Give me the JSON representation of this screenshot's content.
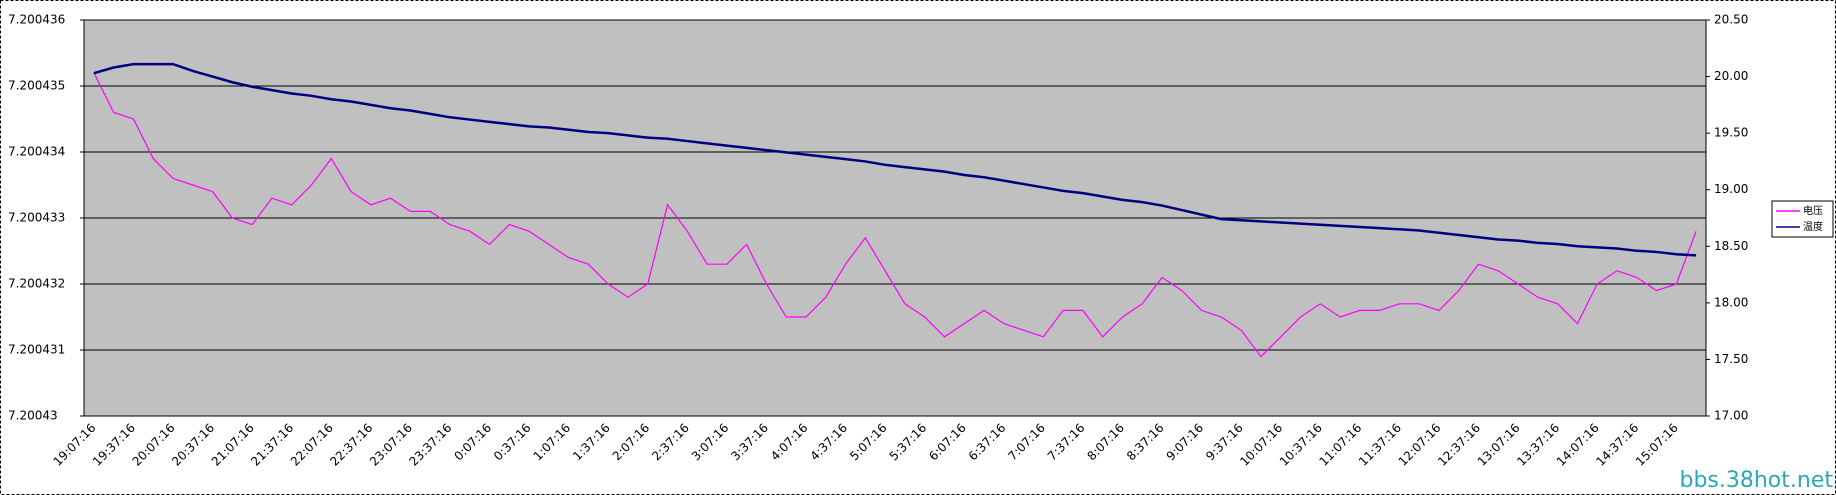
{
  "chart_data": {
    "type": "line",
    "categories": [
      "19:07:16",
      null,
      "19:37:16",
      null,
      "20:07:16",
      null,
      "20:37:16",
      null,
      "21:07:16",
      null,
      "21:37:16",
      null,
      "22:07:16",
      null,
      "22:37:16",
      null,
      "23:07:16",
      null,
      "23:37:16",
      null,
      "0:07:16",
      null,
      "0:37:16",
      null,
      "1:07:16",
      null,
      "1:37:16",
      null,
      "2:07:16",
      null,
      "2:37:16",
      null,
      "3:07:16",
      null,
      "3:37:16",
      null,
      "4:07:16",
      null,
      "4:37:16",
      null,
      "5:07:16",
      null,
      "5:37:16",
      null,
      "6:07:16",
      null,
      "6:37:16",
      null,
      "7:07:16",
      null,
      "7:37:16",
      null,
      "8:07:16",
      null,
      "8:37:16",
      null,
      "9:07:16",
      null,
      "9:37:16",
      null,
      "10:07:16",
      null,
      "10:37:16",
      null,
      "11:07:16",
      null,
      "11:37:16",
      null,
      "12:07:16",
      null,
      "12:37:16",
      null,
      "13:07:16",
      null,
      "13:37:16",
      null,
      "14:07:16",
      null,
      "14:37:16",
      null,
      "15:07:16",
      null
    ],
    "series": [
      {
        "name": "电压",
        "color": "#ff00ff",
        "values": [
          7.2004352,
          7.2004346,
          7.2004345,
          7.2004339,
          7.2004336,
          7.2004335,
          7.2004334,
          7.200433,
          7.2004329,
          7.2004333,
          7.2004332,
          7.2004335,
          7.2004339,
          7.2004334,
          7.2004332,
          7.2004333,
          7.2004331,
          7.2004331,
          7.2004329,
          7.2004328,
          7.2004326,
          7.2004329,
          7.2004328,
          7.2004326,
          7.2004324,
          7.2004323,
          7.200432,
          7.2004318,
          7.200432,
          7.2004332,
          7.2004328,
          7.2004323,
          7.2004323,
          7.2004326,
          7.200432,
          7.2004315,
          7.2004315,
          7.2004318,
          7.2004323,
          7.2004327,
          7.2004322,
          7.2004317,
          7.2004315,
          7.2004312,
          7.2004314,
          7.2004316,
          7.2004314,
          7.2004313,
          7.2004312,
          7.2004316,
          7.2004316,
          7.2004312,
          7.2004315,
          7.2004317,
          7.2004321,
          7.2004319,
          7.2004316,
          7.2004315,
          7.2004313,
          7.2004309,
          7.2004312,
          7.2004315,
          7.2004317,
          7.2004315,
          7.2004316,
          7.2004316,
          7.2004317,
          7.2004317,
          7.2004316,
          7.2004319,
          7.2004323,
          7.2004322,
          7.200432,
          7.2004318,
          7.2004317,
          7.2004314,
          7.200432,
          7.2004322,
          7.2004321,
          7.2004319,
          7.200432,
          7.2004328
        ]
      },
      {
        "name": "温度",
        "color": "#000080",
        "axis": "y2",
        "values": [
          20.03,
          20.08,
          20.11,
          20.11,
          20.11,
          20.05,
          20.0,
          19.95,
          19.91,
          19.88,
          19.85,
          19.83,
          19.8,
          19.78,
          19.75,
          19.72,
          19.7,
          19.67,
          19.64,
          19.62,
          19.6,
          19.58,
          19.56,
          19.55,
          19.53,
          19.51,
          19.5,
          19.48,
          19.46,
          19.45,
          19.43,
          19.41,
          19.39,
          19.37,
          19.35,
          19.33,
          19.31,
          19.29,
          19.27,
          19.25,
          19.22,
          19.2,
          19.18,
          19.16,
          19.13,
          19.11,
          19.08,
          19.05,
          19.02,
          18.99,
          18.97,
          18.94,
          18.91,
          18.89,
          18.86,
          18.82,
          18.78,
          18.74,
          18.73,
          18.72,
          18.71,
          18.7,
          18.69,
          18.68,
          18.67,
          18.66,
          18.65,
          18.64,
          18.62,
          18.6,
          18.58,
          18.56,
          18.55,
          18.53,
          18.52,
          18.5,
          18.49,
          18.48,
          18.46,
          18.45,
          18.43,
          18.42
        ]
      }
    ],
    "ylim": [
      7.20043,
      7.200436
    ],
    "yticks": [
      7.20043,
      7.200431,
      7.200432,
      7.200433,
      7.200434,
      7.200435,
      7.200436
    ],
    "y2lim": [
      17,
      20.5
    ],
    "y2ticks": [
      {
        "value": 17,
        "label": "17.00"
      },
      {
        "value": 17.5,
        "label": "17.50"
      },
      {
        "value": 18,
        "label": "18.00"
      },
      {
        "value": 18.5,
        "label": "18.50"
      },
      {
        "value": 19,
        "label": "19.00"
      },
      {
        "value": 19.5,
        "label": "19.50"
      },
      {
        "value": 20,
        "label": "20.00"
      },
      {
        "value": 20.5,
        "label": "20.50"
      }
    ],
    "grid": true,
    "legend": "right"
  },
  "watermark": "bbs.38hot.net"
}
